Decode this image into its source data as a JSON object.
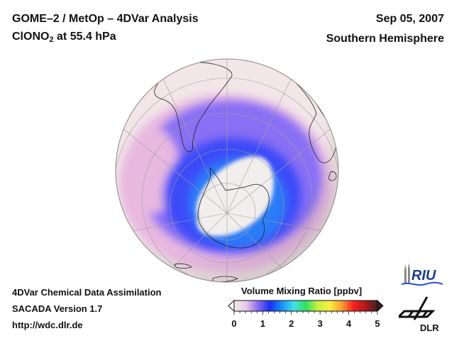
{
  "header": {
    "title_line1": "GOME–2 / MetOp – 4DVar Analysis",
    "species": "ClONO",
    "species_subscript": "2",
    "level_text": " at 55.4 hPa",
    "date": "Sep 05, 2007",
    "region": "Southern Hemisphere"
  },
  "footer": {
    "line1": "4DVar Chemical Data Assimilation",
    "line2": "SACADA Version 1.7",
    "line3": "http://wdc.dlr.de"
  },
  "colorbar": {
    "title": "Volume Mixing Ratio [ppbv]",
    "min": 0,
    "max": 5,
    "ticks": [
      "0",
      "1",
      "2",
      "3",
      "4",
      "5"
    ],
    "colors": [
      "#f4ecec",
      "#e8c8e8",
      "#8a6cf0",
      "#1a30f8",
      "#1a90f8",
      "#40e0e8",
      "#30e060",
      "#c8f040",
      "#f8f040",
      "#f8a030",
      "#f82020",
      "#b01818",
      "#402020"
    ],
    "extend": "both"
  },
  "map": {
    "projection": "orthographic",
    "hemisphere": "south",
    "colors": {
      "background_low": "#f2e6e8",
      "pink": "#e8b8e0",
      "violet": "#8870f4",
      "blue": "#3a4cf8",
      "cyan_blue": "#2a7cf8",
      "pole_low": "#f2eeee",
      "coastline": "#222222",
      "graticule": "#a0a0a0"
    }
  },
  "logos": {
    "riu": "RIU",
    "dlr": "DLR"
  }
}
